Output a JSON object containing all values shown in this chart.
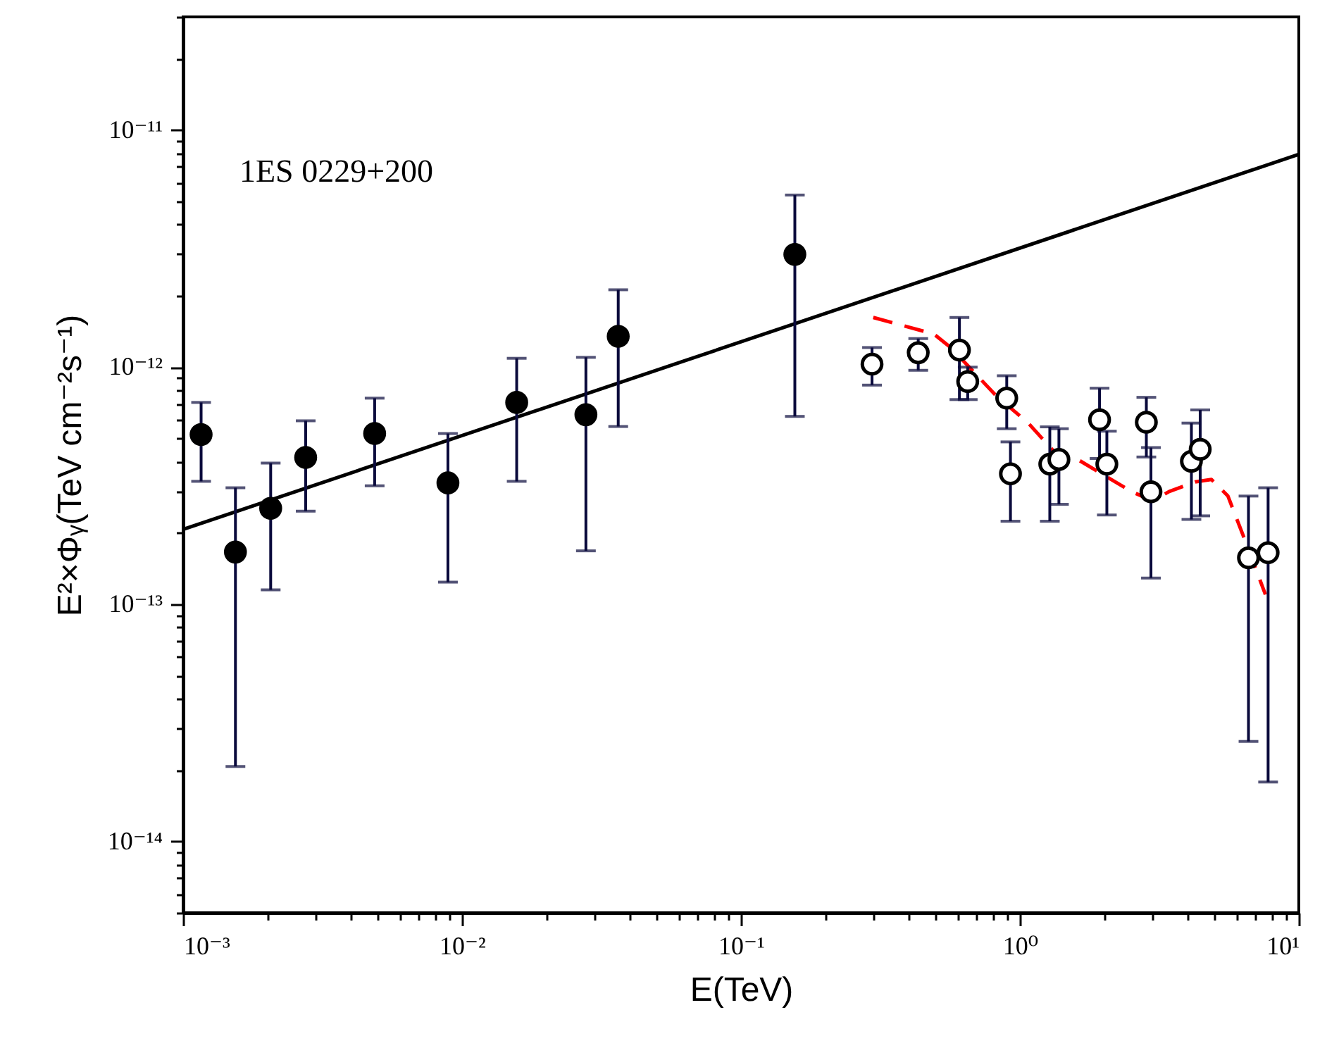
{
  "chart_data": {
    "type": "scatter",
    "xlabel": "E(TeV)",
    "ylabel": "E²×Φᵧ(TeV cm⁻²s⁻¹)",
    "annotations": [
      "1ES  0229+200"
    ],
    "log": "xy",
    "grid": false,
    "xlim": [
      0.001,
      10
    ],
    "ylim": [
      5e-15,
      3e-11
    ],
    "xticks": [
      {
        "value": 0.001,
        "label": "10⁻³"
      },
      {
        "value": 0.002,
        "label": null
      },
      {
        "value": 0.003,
        "label": null
      },
      {
        "value": 0.004,
        "label": null
      },
      {
        "value": 0.005,
        "label": null
      },
      {
        "value": 0.006,
        "label": null
      },
      {
        "value": 0.007,
        "label": null
      },
      {
        "value": 0.008,
        "label": null
      },
      {
        "value": 0.009,
        "label": null
      },
      {
        "value": 0.01,
        "label": "10⁻²"
      },
      {
        "value": 0.02,
        "label": null
      },
      {
        "value": 0.03,
        "label": null
      },
      {
        "value": 0.04,
        "label": null
      },
      {
        "value": 0.05,
        "label": null
      },
      {
        "value": 0.06,
        "label": null
      },
      {
        "value": 0.07,
        "label": null
      },
      {
        "value": 0.08,
        "label": null
      },
      {
        "value": 0.09,
        "label": null
      },
      {
        "value": 0.1,
        "label": "10⁻¹"
      },
      {
        "value": 0.2,
        "label": null
      },
      {
        "value": 0.3,
        "label": null
      },
      {
        "value": 0.4,
        "label": null
      },
      {
        "value": 0.5,
        "label": null
      },
      {
        "value": 0.6,
        "label": null
      },
      {
        "value": 0.7,
        "label": null
      },
      {
        "value": 0.8,
        "label": null
      },
      {
        "value": 0.9,
        "label": null
      },
      {
        "value": 1,
        "label": "10⁰"
      },
      {
        "value": 2,
        "label": null
      },
      {
        "value": 3,
        "label": null
      },
      {
        "value": 4,
        "label": null
      },
      {
        "value": 5,
        "label": null
      },
      {
        "value": 6,
        "label": null
      },
      {
        "value": 7,
        "label": null
      },
      {
        "value": 8,
        "label": null
      },
      {
        "value": 9,
        "label": null
      },
      {
        "value": 10,
        "label": "10¹"
      }
    ],
    "yticks": [
      {
        "value": 5e-15,
        "label": null
      },
      {
        "value": 6e-15,
        "label": null
      },
      {
        "value": 7e-15,
        "label": null
      },
      {
        "value": 8e-15,
        "label": null
      },
      {
        "value": 9e-15,
        "label": null
      },
      {
        "value": 1e-14,
        "label": "10⁻¹⁴"
      },
      {
        "value": 2e-14,
        "label": null
      },
      {
        "value": 3e-14,
        "label": null
      },
      {
        "value": 4e-14,
        "label": null
      },
      {
        "value": 5e-14,
        "label": null
      },
      {
        "value": 6e-14,
        "label": null
      },
      {
        "value": 7e-14,
        "label": null
      },
      {
        "value": 8e-14,
        "label": null
      },
      {
        "value": 9e-14,
        "label": null
      },
      {
        "value": 1e-13,
        "label": "10⁻¹³"
      },
      {
        "value": 2e-13,
        "label": null
      },
      {
        "value": 3e-13,
        "label": null
      },
      {
        "value": 4e-13,
        "label": null
      },
      {
        "value": 5e-13,
        "label": null
      },
      {
        "value": 6e-13,
        "label": null
      },
      {
        "value": 7e-13,
        "label": null
      },
      {
        "value": 8e-13,
        "label": null
      },
      {
        "value": 9e-13,
        "label": null
      },
      {
        "value": 1e-12,
        "label": "10⁻¹²"
      },
      {
        "value": 2e-12,
        "label": null
      },
      {
        "value": 3e-12,
        "label": null
      },
      {
        "value": 4e-12,
        "label": null
      },
      {
        "value": 5e-12,
        "label": null
      },
      {
        "value": 6e-12,
        "label": null
      },
      {
        "value": 7e-12,
        "label": null
      },
      {
        "value": 8e-12,
        "label": null
      },
      {
        "value": 9e-12,
        "label": null
      },
      {
        "value": 1e-11,
        "label": "10⁻¹¹"
      },
      {
        "value": 2e-11,
        "label": null
      },
      {
        "value": 3e-11,
        "label": null
      }
    ],
    "series": [
      {
        "type": "line",
        "color": "#000000",
        "line_style": "solid",
        "x": [
          0.001,
          10
        ],
        "values": [
          2.07e-13,
          7.9e-12
        ]
      },
      {
        "type": "line",
        "color": "#ff0000",
        "line_style": "dashed",
        "x": [
          0.298,
          0.491,
          0.565,
          0.82,
          1.073,
          1.35,
          1.64,
          2.51,
          2.99,
          3.43,
          4.25,
          4.86,
          5.57,
          6.37,
          7.59
        ],
        "values": [
          1.62e-12,
          1.38e-12,
          1.21e-12,
          7.6e-13,
          5.8e-13,
          4.3e-13,
          4.03e-13,
          2.99e-13,
          2.73e-13,
          2.99e-13,
          3.28e-13,
          3.36e-13,
          2.86e-13,
          1.9e-13,
          1.1e-13
        ]
      },
      {
        "color": "#000000",
        "marker": "circle",
        "x": [
          0.00116,
          0.00154,
          0.00206,
          0.00275,
          0.00486,
          0.0089,
          0.0157,
          0.0278,
          0.0363,
          0.156
        ],
        "values": [
          5.2e-13,
          1.66e-13,
          2.54e-13,
          4.16e-13,
          5.25e-13,
          3.25e-13,
          7.1e-13,
          6.3e-13,
          1.35e-12,
          2.99e-12
        ],
        "errors": [
          [
            3.3e-13,
            7.1e-13
          ],
          [
            2.07e-14,
            3.1e-13
          ],
          [
            1.15e-13,
            3.94e-13
          ],
          [
            2.47e-13,
            5.94e-13
          ],
          [
            3.16e-13,
            7.4e-13
          ],
          [
            1.24e-13,
            5.25e-13
          ],
          [
            3.3e-13,
            1.09e-12
          ],
          [
            1.68e-13,
            1.1e-12
          ],
          [
            5.62e-13,
            2.12e-12
          ],
          [
            6.2e-13,
            5.32e-12
          ]
        ]
      },
      {
        "color": "#ffffff",
        "marker": "circle",
        "x": [
          0.295,
          0.432,
          0.607,
          0.65,
          0.897,
          0.925,
          1.28,
          1.38,
          1.93,
          2.05,
          2.84,
          2.95,
          4.12,
          4.43,
          6.6,
          7.76
        ],
        "values": [
          1.03e-12,
          1.15e-12,
          1.18e-12,
          8.7e-13,
          7.4e-13,
          3.55e-13,
          3.9e-13,
          4.08e-13,
          6e-13,
          3.9e-13,
          5.86e-13,
          2.98e-13,
          4.01e-13,
          4.5e-13,
          1.57e-13,
          1.65e-13
        ],
        "errors": [
          [
            8.4e-13,
            1.21e-12
          ],
          [
            9.7e-13,
            1.32e-12
          ],
          [
            7.3e-13,
            1.62e-12
          ],
          [
            7.3e-13,
            1e-12
          ],
          [
            5.5e-13,
            9.2e-13
          ],
          [
            2.24e-13,
            4.84e-13
          ],
          [
            2.24e-13,
            5.6e-13
          ],
          [
            2.64e-13,
            5.5e-13
          ],
          [
            4.12e-13,
            8.15e-13
          ],
          [
            2.38e-13,
            5.37e-13
          ],
          [
            4.18e-13,
            7.46e-13
          ],
          [
            1.29e-13,
            4.58e-13
          ],
          [
            2.28e-13,
            5.81e-13
          ],
          [
            2.36e-13,
            6.6e-13
          ],
          [
            2.64e-14,
            2.86e-13
          ],
          [
            1.78e-14,
            3.1e-13
          ]
        ]
      }
    ]
  }
}
